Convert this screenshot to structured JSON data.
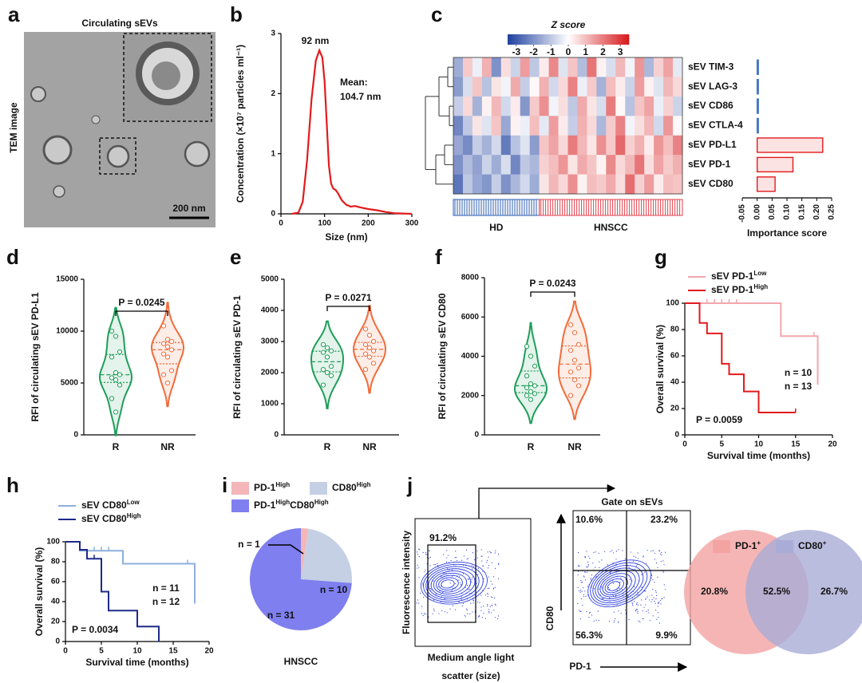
{
  "panel_labels": [
    "a",
    "b",
    "c",
    "d",
    "e",
    "f",
    "g",
    "h",
    "i",
    "j"
  ],
  "tem": {
    "title": "Circulating sEVs",
    "ylabel": "TEM image",
    "scale_bar": "200 nm"
  },
  "chart_data": [
    {
      "type": "line",
      "xlabel": "Size (nm)",
      "ylabel": "Concentration (×10⁷ particles ml⁻¹)",
      "annotations": [
        "92 nm",
        "Mean:",
        "104.7 nm"
      ],
      "x": [
        25,
        40,
        50,
        60,
        70,
        80,
        88,
        95,
        100,
        105,
        110,
        115,
        120,
        125,
        130,
        140,
        150,
        160,
        170,
        180,
        200,
        220,
        240,
        260,
        300
      ],
      "values": [
        0,
        0.02,
        0.2,
        0.9,
        1.9,
        2.55,
        2.72,
        2.6,
        2.2,
        1.5,
        0.8,
        0.5,
        0.42,
        0.4,
        0.35,
        0.22,
        0.15,
        0.12,
        0.13,
        0.11,
        0.08,
        0.06,
        0.03,
        0.01,
        0
      ],
      "color": "#e31a1c",
      "xlim": [
        0,
        300
      ],
      "xticks": [
        0,
        100,
        200,
        300
      ],
      "ylim": [
        0,
        3
      ],
      "yticks": [
        0,
        1,
        2,
        3
      ]
    },
    {
      "type": "heatmap",
      "colorbar_title": "Z score",
      "row_labels": [
        "sEV TIM-3",
        "sEV LAG-3",
        "sEV CD86",
        "sEV CTLA-4",
        "sEV PD-L1",
        "sEV PD-1",
        "sEV CD80"
      ],
      "values": [
        [
          -1.5,
          0.8,
          -0.3,
          1.2,
          -2,
          0.5,
          -0.8,
          1.5,
          -1,
          0.3,
          1.8,
          -0.5,
          0.9,
          -1.2,
          2.1,
          0.2,
          -0.6,
          1.1,
          -0.2,
          1.6,
          -1.3,
          0.7,
          1.4,
          -0.4
        ],
        [
          -1.8,
          -0.6,
          0.9,
          -1.1,
          0.4,
          -0.2,
          1.3,
          -0.9,
          0.1,
          1.2,
          -0.7,
          0.6,
          1.9,
          -0.3,
          0.8,
          -1.4,
          1,
          0.3,
          -0.8,
          1.5,
          0.2,
          -0.5,
          1.1,
          0.6
        ],
        [
          -0.9,
          0.6,
          -1.4,
          0.2,
          1.1,
          -0.7,
          0.3,
          -1.9,
          0.8,
          1.7,
          -0.2,
          0.5,
          -1,
          1.3,
          0.4,
          -0.6,
          2,
          0.1,
          -1.1,
          0.9,
          1.4,
          -0.3,
          0.7,
          -0.8
        ],
        [
          -2.2,
          -1,
          0.4,
          -0.5,
          0.9,
          -1.6,
          0.2,
          -0.3,
          1,
          -0.4,
          1.5,
          0.3,
          -0.9,
          1.2,
          0.6,
          -1.3,
          0.8,
          1.9,
          -0.2,
          0.5,
          1.1,
          -0.7,
          1.6,
          0.1
        ],
        [
          -1.6,
          -2.1,
          -0.9,
          -1.4,
          -0.7,
          -2.4,
          -1.1,
          -0.5,
          -1.8,
          0.9,
          1.4,
          0.6,
          2,
          1.1,
          0.4,
          1.7,
          0.8,
          2.3,
          0.7,
          1.2,
          0.3,
          1.6,
          1,
          1.9
        ],
        [
          -2,
          -1.2,
          -1.7,
          -0.8,
          -1.5,
          -0.6,
          -2.2,
          -1,
          -1.3,
          0.7,
          1,
          1.6,
          0.4,
          1.3,
          0.9,
          0.2,
          1.8,
          0.6,
          1.1,
          2.1,
          0.5,
          1.4,
          0.8,
          1.2
        ],
        [
          -2.5,
          -1,
          -1.6,
          -1.9,
          -0.9,
          -2,
          -1.3,
          -0.7,
          -1.5,
          0.4,
          1.1,
          0.6,
          1.7,
          0.2,
          1,
          0.8,
          1.3,
          0.5,
          2.2,
          0.7,
          1.5,
          0.3,
          1,
          0.9
        ]
      ],
      "zlim": [
        -3.5,
        3.5
      ],
      "zticks": [
        -3,
        -2,
        -1,
        0,
        1,
        2,
        3
      ],
      "colors": [
        "#1d3f9e",
        "#ffffff",
        "#d7191c"
      ],
      "groups": [
        {
          "name": "HD",
          "columns": 9,
          "color": "#2f5fb3"
        },
        {
          "name": "HNSCC",
          "columns": 15,
          "color": "#e0434e"
        }
      ]
    },
    {
      "type": "hbar",
      "xlabel": "Importance score",
      "values": [
        0.004,
        0.003,
        0.003,
        0.004,
        0.22,
        0.12,
        0.06
      ],
      "colors": [
        "#3a6fc0",
        "#3a6fc0",
        "#3a6fc0",
        "#3a6fc0",
        "#e31a1c",
        "#e31a1c",
        "#e31a1c"
      ],
      "xlim": [
        -0.05,
        0.25
      ],
      "xticks": [
        -0.05,
        {
          "value": 0,
          "label": "0.00"
        },
        0.05,
        {
          "value": 0.1,
          "label": "0.10"
        },
        0.15,
        {
          "value": 0.2,
          "label": "0.20"
        },
        0.25
      ]
    },
    {
      "type": "violin",
      "ylabel": "RFI of circulating sEV PD-L1",
      "annotation": "P = 0.0245",
      "categories": [
        "R",
        "NR"
      ],
      "values": [
        [
          10000,
          9500,
          8000,
          7500,
          6000,
          5800,
          5500,
          5300,
          4800,
          3500,
          2200
        ],
        [
          10500,
          9200,
          9000,
          8800,
          8500,
          8200,
          7800,
          7500,
          6200,
          5800,
          5000
        ]
      ],
      "colors": [
        "#1f9e5a",
        "#f26b3a"
      ],
      "ylim": [
        0,
        15000
      ],
      "yticks": [
        0,
        5000,
        10000,
        15000
      ]
    },
    {
      "type": "violin",
      "ylabel": "RFI of circulating sEV PD-1",
      "annotation": "P = 0.0271",
      "categories": [
        "R",
        "NR"
      ],
      "values": [
        [
          2900,
          2800,
          2700,
          2650,
          2500,
          2200,
          2100,
          2000,
          1900,
          1600
        ],
        [
          3400,
          3200,
          3000,
          2900,
          2800,
          2700,
          2600,
          2500,
          2300,
          2100
        ]
      ],
      "colors": [
        "#1f9e5a",
        "#f26b3a"
      ],
      "ylim": [
        0,
        5000
      ],
      "yticks": [
        0,
        1000,
        2000,
        3000,
        4000,
        5000
      ]
    },
    {
      "type": "violin",
      "ylabel": "RFI of circulating sEV CD80",
      "annotation": "P = 0.0243",
      "categories": [
        "R",
        "NR"
      ],
      "values": [
        [
          4500,
          4000,
          3500,
          3000,
          2600,
          2500,
          2400,
          2200,
          2100,
          2000,
          1800
        ],
        [
          5600,
          5200,
          4600,
          4300,
          3800,
          3400,
          3200,
          2800,
          2500,
          2000
        ]
      ],
      "colors": [
        "#1f9e5a",
        "#f26b3a"
      ],
      "ylim": [
        0,
        8000
      ],
      "yticks": [
        0,
        2000,
        4000,
        6000,
        8000
      ]
    },
    {
      "type": "survival",
      "xlabel": "Survival time (months)",
      "ylabel": "Overall survival (%)",
      "annotation": "P = 0.0059",
      "series": [
        {
          "name": [
            "sEV PD-1",
            "Low"
          ],
          "color": "#f2a7ac",
          "n_label": "n = 10",
          "x": [
            0,
            13,
            13,
            18,
            18
          ],
          "values": [
            100,
            100,
            75,
            75,
            38
          ],
          "censored": [
            3,
            4,
            5,
            6,
            7,
            17.5
          ]
        },
        {
          "name": [
            "sEV PD-1",
            "High"
          ],
          "color": "#e31a1c",
          "n_label": "n = 13",
          "x": [
            0,
            2,
            2,
            3,
            3,
            5,
            5,
            6,
            6,
            8,
            8,
            10,
            10,
            15
          ],
          "values": [
            100,
            100,
            85,
            85,
            77,
            77,
            54,
            54,
            46,
            46,
            33,
            33,
            17,
            17
          ],
          "censored": [
            15
          ]
        }
      ],
      "xlim": [
        0,
        20
      ],
      "xticks": [
        0,
        5,
        10,
        15,
        20
      ],
      "ylim": [
        0,
        100
      ],
      "yticks": [
        0,
        20,
        40,
        60,
        80,
        100
      ]
    },
    {
      "type": "survival",
      "xlabel": "Survival time (months)",
      "ylabel": "Overall survival (%)",
      "annotation": "P = 0.0034",
      "series": [
        {
          "name": [
            "sEV CD80",
            "Low"
          ],
          "color": "#8fb0dc",
          "n_label": "n = 11",
          "x": [
            0,
            2,
            2,
            8,
            8,
            18,
            18
          ],
          "values": [
            100,
            100,
            91,
            91,
            78,
            78,
            38
          ],
          "censored": [
            4,
            5,
            6,
            17
          ]
        },
        {
          "name": [
            "sEV CD80",
            "High"
          ],
          "color": "#1f2a8a",
          "n_label": "n = 12",
          "x": [
            0,
            2,
            2,
            3,
            3,
            5,
            5,
            6,
            6,
            10,
            10,
            13,
            13
          ],
          "values": [
            100,
            100,
            92,
            92,
            83,
            83,
            50,
            50,
            31,
            31,
            15,
            15,
            0
          ],
          "censored": [
            4
          ]
        }
      ],
      "xlim": [
        0,
        20
      ],
      "xticks": [
        0,
        5,
        10,
        15,
        20
      ],
      "ylim": [
        0,
        100
      ],
      "yticks": [
        0,
        20,
        40,
        60,
        80,
        100
      ]
    },
    {
      "type": "pie",
      "title": "HNSCC",
      "categories": [
        [
          "PD-1",
          "High"
        ],
        [
          "CD80",
          "High"
        ],
        [
          "PD-1",
          "High",
          "CD80",
          "High"
        ]
      ],
      "values": [
        1,
        10,
        31
      ],
      "value_labels": [
        "n = 1",
        "n = 10",
        "n = 31"
      ],
      "colors": [
        "#f4b6b8",
        "#c5d0e4",
        "#7f7ff0"
      ]
    }
  ],
  "flow": {
    "gate_percent": "91.2%",
    "ylabel": "Fluorescence intensity",
    "xlabel": [
      "Medium angle light",
      "scatter (size)"
    ],
    "gate_title": "Gate on sEVs",
    "y2label": "CD80",
    "x2label": "PD-1",
    "quadrants": [
      "10.6%",
      "23.2%",
      "56.3%",
      "9.9%"
    ]
  },
  "venn": {
    "sets": [
      [
        "PD-1",
        "+"
      ],
      [
        "CD80",
        "+"
      ]
    ],
    "regions": [
      "20.8%",
      "52.5%",
      "26.7%"
    ]
  }
}
